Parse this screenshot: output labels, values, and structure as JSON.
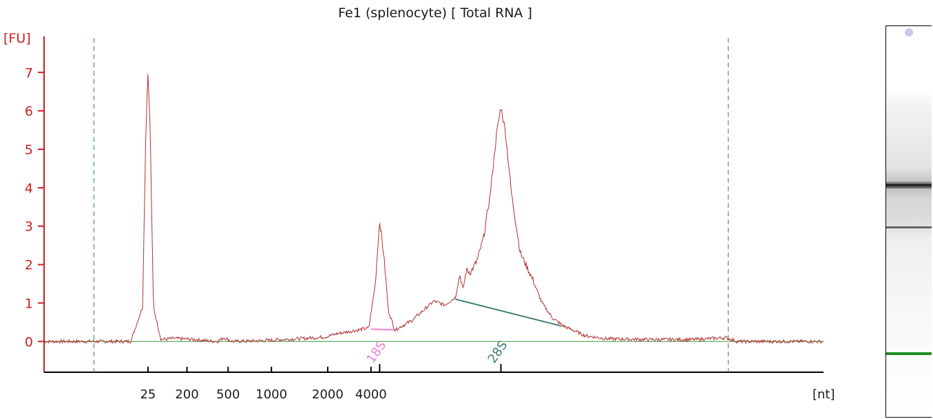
{
  "chart_data": {
    "type": "line",
    "title": "Fe1 (splenocyte)  [ Total RNA ]",
    "ylabel": "[FU]",
    "xlabel": "[nt]",
    "yticks": [
      0,
      1,
      2,
      3,
      4,
      5,
      6,
      7
    ],
    "ylim": [
      -0.8,
      7.9
    ],
    "x_axis_ticks": [
      {
        "label": "25",
        "t": 24.8
      },
      {
        "label": "200",
        "t": 26.6
      },
      {
        "label": "500",
        "t": 28.5
      },
      {
        "label": "1000",
        "t": 30.5
      },
      {
        "label": "2000",
        "t": 33.1
      },
      {
        "label": "4000",
        "t": 35.1
      }
    ],
    "x_time_range": [
      20.0,
      56.0
    ],
    "ladder_lines_t": [
      22.3,
      51.6
    ],
    "peaks": [
      {
        "name": "marker",
        "t": 24.8,
        "height": 7.05
      },
      {
        "name": "18S",
        "t": 35.5,
        "height": 3.15
      },
      {
        "name": "28S",
        "t": 41.1,
        "height": 6.1
      }
    ],
    "markers": [
      {
        "label": "18S",
        "t": 35.5,
        "color": "#f080d8"
      },
      {
        "label": "28S",
        "t": 41.1,
        "color": "#3f7d74"
      }
    ],
    "series": [
      {
        "color": "#b03030",
        "t": [
          20.0,
          24.0,
          24.55,
          24.7,
          24.8,
          24.9,
          25.05,
          25.4,
          26.0,
          27.0,
          27.5,
          28.0,
          28.3,
          28.7,
          30.0,
          31.0,
          32.0,
          33.0,
          33.5,
          34.0,
          34.5,
          35.0,
          35.3,
          35.5,
          35.7,
          35.9,
          36.2,
          37.0,
          37.5,
          38.0,
          38.5,
          39.0,
          39.2,
          39.35,
          39.5,
          39.7,
          40.0,
          40.3,
          40.6,
          40.9,
          41.1,
          41.3,
          41.6,
          42.0,
          42.5,
          43.0,
          43.5,
          44.0,
          45.0,
          46.0,
          48.0,
          50.0,
          51.5,
          52.0,
          56.0
        ],
        "y": [
          0.0,
          0.0,
          0.9,
          5.5,
          7.05,
          5.5,
          0.9,
          0.05,
          0.08,
          0.05,
          0.02,
          0.0,
          0.1,
          0.0,
          0.02,
          0.05,
          0.08,
          0.12,
          0.2,
          0.25,
          0.3,
          0.35,
          1.5,
          3.15,
          2.2,
          0.8,
          0.3,
          0.55,
          0.8,
          1.05,
          0.95,
          1.15,
          1.75,
          1.35,
          1.85,
          1.8,
          2.1,
          2.7,
          3.8,
          5.4,
          6.1,
          5.5,
          3.8,
          2.3,
          1.7,
          1.0,
          0.6,
          0.4,
          0.15,
          0.07,
          0.05,
          0.05,
          0.1,
          0.0,
          0.0
        ]
      }
    ],
    "grid": false
  }
}
